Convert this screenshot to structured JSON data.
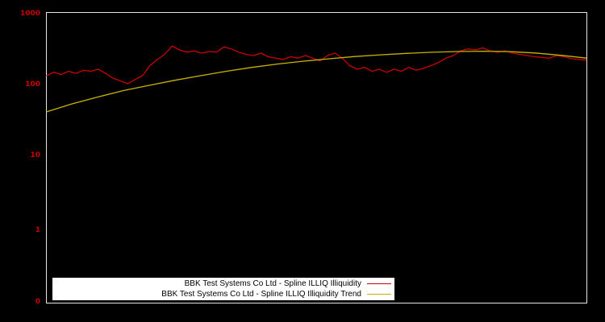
{
  "colors": {
    "background": "#000000",
    "frame": "#e6e6e6",
    "series_red": "#cc0000",
    "series_trend": "#c8b400",
    "tick_label": "#cc0000",
    "legend_background": "#ffffff",
    "legend_text": "#000000"
  },
  "y_axis": {
    "tick_labels": [
      "1000",
      "100",
      "10",
      "1",
      "0"
    ]
  },
  "legend": {
    "items": [
      {
        "label": "BBK Test Systems Co Ltd - Spline ILLIQ Illiquidity",
        "color": "#cc0000"
      },
      {
        "label": "BBK Test Systems Co Ltd - Spline ILLIQ Illiquidity Trend",
        "color": "#c8b400"
      }
    ]
  },
  "chart_data": {
    "type": "line",
    "title": "",
    "xlabel": "",
    "ylabel": "",
    "y_scale": "log",
    "ylim": [
      0.08,
      1000
    ],
    "yticks": [
      1000,
      100,
      10,
      1,
      0
    ],
    "x_tick_labels": [],
    "grid": false,
    "legend_position": "bottom",
    "series": [
      {
        "name": "BBK Test Systems Co Ltd - Spline ILLIQ Illiquidity",
        "color": "#cc0000",
        "values": [
          130,
          145,
          135,
          150,
          140,
          155,
          150,
          160,
          140,
          120,
          110,
          100,
          115,
          130,
          180,
          220,
          260,
          340,
          300,
          280,
          290,
          270,
          285,
          280,
          330,
          310,
          280,
          260,
          250,
          270,
          240,
          230,
          220,
          240,
          230,
          250,
          230,
          210,
          250,
          270,
          230,
          180,
          160,
          170,
          150,
          160,
          145,
          160,
          150,
          170,
          155,
          165,
          180,
          200,
          230,
          250,
          290,
          310,
          300,
          320,
          290,
          280,
          290,
          270,
          260,
          250,
          240,
          235,
          230,
          250,
          240,
          225,
          220,
          215
        ]
      },
      {
        "name": "BBK Test Systems Co Ltd - Spline ILLIQ Illiquidity Trend",
        "color": "#c8b400",
        "values": [
          40,
          52,
          65,
          80,
          95,
          112,
          130,
          150,
          170,
          190,
          208,
          225,
          242,
          256,
          268,
          278,
          285,
          288,
          284,
          272,
          252,
          230
        ]
      }
    ]
  }
}
